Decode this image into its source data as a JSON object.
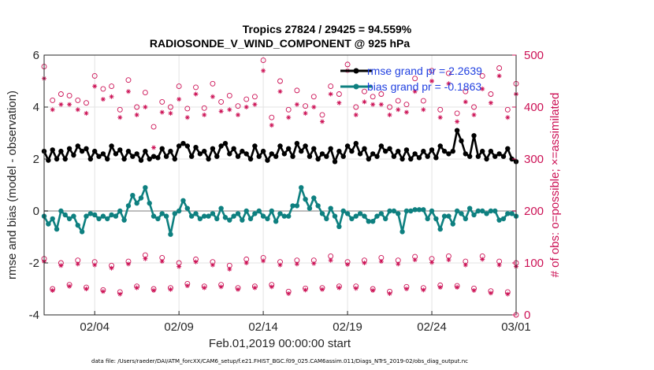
{
  "chart_data": {
    "type": "line",
    "title": "Tropics 27824 / 29425 = 94.559%",
    "subtitle": "RADIOSONDE_V_WIND_COMPONENT @ 925 hPa",
    "xlabel": "Feb.01,2019 00:00:00 start",
    "ylabel": "rmse and bias (model - observation)",
    "y2label": "# of obs: o=possible; ×=assimilated",
    "ylim": [
      -4,
      6
    ],
    "y2lim": [
      0,
      500
    ],
    "x_days_range": [
      0,
      28
    ],
    "x_ticks": [
      {
        "day": 3,
        "label": "02/04"
      },
      {
        "day": 8,
        "label": "02/09"
      },
      {
        "day": 13,
        "label": "02/14"
      },
      {
        "day": 18,
        "label": "02/19"
      },
      {
        "day": 23,
        "label": "02/24"
      },
      {
        "day": 28,
        "label": "03/01"
      }
    ],
    "y_ticks": [
      -4,
      -2,
      0,
      2,
      4,
      6
    ],
    "y_tick_labels": [
      "-4",
      "-2",
      "0",
      "2",
      "4",
      "6"
    ],
    "y2_ticks": [
      0,
      100,
      200,
      300,
      400,
      500
    ],
    "y2_tick_labels": [
      "0",
      "100",
      "200",
      "300",
      "400",
      "500"
    ],
    "legend": [
      {
        "label": "rmse grand pr = 2.2639",
        "color": "#000000"
      },
      {
        "label": "bias grand pr = -0.1863",
        "color": "#0e8080"
      }
    ],
    "legend_position": "top-right",
    "colors": {
      "rmse": "#000000",
      "bias": "#0e8080",
      "obs": "#cc1155",
      "zero_line": "#bdbdbd"
    },
    "series": [
      {
        "name": "rmse",
        "axis": "left",
        "x": [
          0,
          0.25,
          0.5,
          0.75,
          1,
          1.25,
          1.5,
          1.75,
          2,
          2.25,
          2.5,
          2.75,
          3,
          3.25,
          3.5,
          3.75,
          4,
          4.25,
          4.5,
          4.75,
          5,
          5.25,
          5.5,
          5.75,
          6,
          6.25,
          6.5,
          6.75,
          7,
          7.25,
          7.5,
          7.75,
          8,
          8.25,
          8.5,
          8.75,
          9,
          9.25,
          9.5,
          9.75,
          10,
          10.25,
          10.5,
          10.75,
          11,
          11.25,
          11.5,
          11.75,
          12,
          12.25,
          12.5,
          12.75,
          13,
          13.25,
          13.5,
          13.75,
          14,
          14.25,
          14.5,
          14.75,
          15,
          15.25,
          15.5,
          15.75,
          16,
          16.25,
          16.5,
          16.75,
          17,
          17.25,
          17.5,
          17.75,
          18,
          18.25,
          18.5,
          18.75,
          19,
          19.25,
          19.5,
          19.75,
          20,
          20.25,
          20.5,
          20.75,
          21,
          21.25,
          21.5,
          21.75,
          22,
          22.25,
          22.5,
          22.75,
          23,
          23.25,
          23.5,
          23.75,
          24,
          24.25,
          24.5,
          24.75,
          25,
          25.25,
          25.5,
          25.75,
          26,
          26.25,
          26.5,
          26.75,
          27,
          27.25,
          27.5,
          27.75,
          28
        ],
        "values": [
          2.3,
          1.95,
          2.35,
          2.0,
          2.3,
          2.0,
          2.4,
          2.15,
          2.5,
          2.3,
          2.4,
          2.0,
          2.3,
          2.1,
          2.2,
          2.0,
          2.5,
          2.2,
          2.35,
          2.0,
          2.3,
          2.1,
          2.2,
          1.95,
          2.3,
          2.0,
          2.1,
          2.05,
          2.4,
          2.1,
          2.3,
          2.0,
          2.5,
          2.6,
          2.5,
          2.1,
          2.45,
          2.2,
          2.3,
          2.0,
          2.4,
          2.1,
          2.5,
          2.6,
          2.2,
          2.4,
          2.1,
          2.3,
          2.2,
          2.0,
          2.5,
          2.1,
          2.3,
          1.95,
          2.2,
          2.1,
          2.5,
          2.2,
          2.4,
          2.1,
          2.6,
          2.3,
          2.5,
          2.1,
          2.4,
          2.0,
          2.2,
          2.1,
          2.4,
          1.9,
          2.3,
          2.1,
          2.5,
          2.3,
          2.6,
          2.2,
          2.4,
          2.0,
          2.2,
          2.1,
          2.5,
          2.3,
          2.4,
          2.1,
          2.3,
          2.0,
          2.35,
          2.0,
          2.2,
          2.05,
          2.3,
          2.1,
          2.35,
          2.05,
          2.5,
          2.3,
          2.2,
          2.3,
          3.1,
          2.7,
          2.2,
          2.1,
          2.9,
          2.1,
          2.3,
          2.0,
          2.3,
          2.1,
          2.2,
          2.1,
          2.4,
          2.0,
          1.9
        ]
      },
      {
        "name": "bias",
        "axis": "left",
        "x": [
          0,
          0.25,
          0.5,
          0.75,
          1,
          1.25,
          1.5,
          1.75,
          2,
          2.25,
          2.5,
          2.75,
          3,
          3.25,
          3.5,
          3.75,
          4,
          4.25,
          4.5,
          4.75,
          5,
          5.25,
          5.5,
          5.75,
          6,
          6.25,
          6.5,
          6.75,
          7,
          7.25,
          7.5,
          7.75,
          8,
          8.25,
          8.5,
          8.75,
          9,
          9.25,
          9.5,
          9.75,
          10,
          10.25,
          10.5,
          10.75,
          11,
          11.25,
          11.5,
          11.75,
          12,
          12.25,
          12.5,
          12.75,
          13,
          13.25,
          13.5,
          13.75,
          14,
          14.25,
          14.5,
          14.75,
          15,
          15.25,
          15.5,
          15.75,
          16,
          16.25,
          16.5,
          16.75,
          17,
          17.25,
          17.5,
          17.75,
          18,
          18.25,
          18.5,
          18.75,
          19,
          19.25,
          19.5,
          19.75,
          20,
          20.25,
          20.5,
          20.75,
          21,
          21.25,
          21.5,
          21.75,
          22,
          22.25,
          22.5,
          22.75,
          23,
          23.25,
          23.5,
          23.75,
          24,
          24.25,
          24.5,
          24.75,
          25,
          25.25,
          25.5,
          25.75,
          26,
          26.25,
          26.5,
          26.75,
          27,
          27.25,
          27.5,
          27.75,
          28
        ],
        "values": [
          -0.2,
          -0.5,
          -0.3,
          -0.7,
          0.0,
          -0.15,
          -0.3,
          -0.2,
          -0.55,
          -0.8,
          -0.2,
          -0.1,
          -0.15,
          -0.3,
          -0.2,
          -0.3,
          -0.15,
          -0.2,
          0.0,
          -0.35,
          0.2,
          0.6,
          0.3,
          0.5,
          0.9,
          0.3,
          -0.2,
          -0.3,
          -0.1,
          -0.2,
          -0.9,
          -0.1,
          0.0,
          0.4,
          0.1,
          -0.2,
          -0.1,
          -0.3,
          -0.2,
          -0.2,
          -0.1,
          -0.3,
          0.1,
          -0.25,
          -0.35,
          -0.2,
          -0.1,
          -0.35,
          0.0,
          -0.3,
          -0.1,
          0.0,
          -0.2,
          -0.3,
          0.0,
          -0.4,
          -0.1,
          -0.2,
          -0.2,
          0.2,
          0.2,
          0.9,
          0.45,
          0.1,
          0.5,
          0.2,
          -0.1,
          -0.3,
          0.1,
          -0.2,
          -0.6,
          0.0,
          -0.1,
          -0.3,
          -0.2,
          -0.1,
          -0.2,
          -0.4,
          -0.4,
          -0.2,
          -0.1,
          -0.3,
          0.0,
          0.0,
          -0.1,
          -0.8,
          0.0,
          0.0,
          0.05,
          0.05,
          0.05,
          -0.3,
          0.0,
          -0.3,
          -0.7,
          -0.2,
          -0.2,
          -0.5,
          0.0,
          -0.1,
          -0.3,
          0.1,
          -0.15,
          0.0,
          0.0,
          -0.1,
          0.0,
          0.0,
          -0.35,
          -0.3,
          -0.1,
          -0.1,
          -0.2
        ]
      },
      {
        "name": "obs possible (group 1)",
        "axis": "right",
        "marker": "o",
        "x": [
          0,
          1,
          2,
          3,
          4,
          5,
          6,
          7,
          8,
          9,
          10,
          11,
          12,
          13,
          14,
          15,
          16,
          17,
          18,
          19,
          20,
          21,
          22,
          23,
          24,
          25,
          26,
          27,
          28
        ],
        "values": [
          478,
          425,
          413,
          460,
          440,
          452,
          428,
          410,
          440,
          438,
          445,
          422,
          415,
          490,
          450,
          432,
          420,
          440,
          482,
          430,
          425,
          412,
          455,
          470,
          465,
          430,
          460,
          475,
          445
        ]
      },
      {
        "name": "obs assimilated (group 1)",
        "axis": "right",
        "marker": "*",
        "x": [
          0,
          1,
          2,
          3,
          4,
          5,
          6,
          7,
          8,
          9,
          10,
          11,
          12,
          13,
          14,
          15,
          16,
          17,
          18,
          19,
          20,
          21,
          22,
          23,
          24,
          25,
          26,
          27,
          28
        ],
        "values": [
          455,
          405,
          395,
          440,
          420,
          430,
          400,
          390,
          415,
          425,
          420,
          395,
          400,
          470,
          430,
          405,
          400,
          425,
          470,
          410,
          405,
          395,
          430,
          450,
          445,
          410,
          435,
          460,
          425
        ]
      },
      {
        "name": "obs possible (group 2)",
        "axis": "right",
        "marker": "o",
        "x": [
          0.5,
          1.5,
          2.5,
          3.5,
          4.5,
          5.5,
          6.5,
          7.5,
          8.5,
          9.5,
          10.5,
          11.5,
          12.5,
          13.5,
          14.5,
          15.5,
          16.5,
          17.5,
          18.5,
          19.5,
          20.5,
          21.5,
          22.5,
          23.5,
          24.5,
          25.5,
          26.5,
          27.5
        ],
        "values": [
          413,
          422,
          408,
          435,
          395,
          400,
          362,
          400,
          397,
          398,
          410,
          402,
          420,
          380,
          395,
          402,
          385,
          425,
          400,
          420,
          400,
          405,
          412,
          395,
          388,
          400,
          425,
          395
        ]
      },
      {
        "name": "obs assimilated (group 2)",
        "axis": "right",
        "marker": "*",
        "x": [
          0.5,
          1.5,
          2.5,
          3.5,
          4.5,
          5.5,
          6.5,
          7.5,
          8.5,
          9.5,
          10.5,
          11.5,
          12.5,
          13.5,
          14.5,
          15.5,
          16.5,
          17.5,
          18.5,
          19.5,
          20.5,
          21.5,
          22.5,
          23.5,
          24.5,
          25.5,
          26.5,
          27.5
        ],
        "values": [
          395,
          405,
          388,
          415,
          380,
          385,
          322,
          388,
          380,
          385,
          392,
          385,
          405,
          365,
          380,
          388,
          372,
          408,
          385,
          405,
          385,
          390,
          395,
          380,
          372,
          385,
          408,
          380
        ]
      },
      {
        "name": "obs possible (group 3)",
        "axis": "right",
        "marker": "o",
        "x": [
          0,
          1,
          2,
          3,
          4,
          5,
          6,
          7,
          8,
          9,
          10,
          11,
          12,
          13,
          14,
          15,
          16,
          17,
          18,
          19,
          20,
          21,
          22,
          23,
          24,
          25,
          26,
          27,
          28
        ],
        "values": [
          108,
          100,
          105,
          102,
          95,
          103,
          115,
          110,
          100,
          107,
          102,
          95,
          107,
          110,
          102,
          105,
          105,
          113,
          102,
          105,
          110,
          105,
          112,
          108,
          113,
          103,
          113,
          103,
          100
        ]
      },
      {
        "name": "obs assimilated (group 3)",
        "axis": "right",
        "marker": "*",
        "x": [
          0,
          1,
          2,
          3,
          4,
          5,
          6,
          7,
          8,
          9,
          10,
          11,
          12,
          13,
          14,
          15,
          16,
          17,
          18,
          19,
          20,
          21,
          22,
          23,
          24,
          25,
          26,
          27,
          28
        ],
        "values": [
          103,
          95,
          98,
          96,
          90,
          98,
          108,
          103,
          93,
          102,
          96,
          88,
          100,
          104,
          96,
          98,
          99,
          105,
          97,
          100,
          103,
          98,
          106,
          101,
          106,
          96,
          107,
          96,
          93
        ]
      },
      {
        "name": "obs possible (group 4)",
        "axis": "right",
        "marker": "o",
        "x": [
          0.5,
          1.5,
          2.5,
          3.5,
          4.5,
          5.5,
          6.5,
          7.5,
          8.5,
          9.5,
          10.5,
          11.5,
          12.5,
          13.5,
          14.5,
          15.5,
          16.5,
          17.5,
          18.5,
          19.5,
          20.5,
          21.5,
          22.5,
          23.5,
          24.5,
          25.5,
          26.5,
          27.5
        ],
        "values": [
          50,
          58,
          53,
          48,
          44,
          55,
          50,
          52,
          60,
          55,
          58,
          52,
          55,
          58,
          45,
          51,
          52,
          55,
          55,
          50,
          45,
          54,
          52,
          57,
          56,
          51,
          46,
          44
        ]
      },
      {
        "name": "obs assimilated (group 4)",
        "axis": "right",
        "marker": "*",
        "x": [
          0.5,
          1.5,
          2.5,
          3.5,
          4.5,
          5.5,
          6.5,
          7.5,
          8.5,
          9.5,
          10.5,
          11.5,
          12.5,
          13.5,
          14.5,
          15.5,
          16.5,
          17.5,
          18.5,
          19.5,
          20.5,
          21.5,
          22.5,
          23.5,
          24.5,
          25.5,
          26.5,
          27.5
        ],
        "values": [
          47,
          55,
          50,
          45,
          40,
          52,
          47,
          49,
          56,
          52,
          54,
          49,
          52,
          54,
          41,
          48,
          49,
          52,
          51,
          47,
          41,
          50,
          48,
          53,
          53,
          47,
          42,
          40
        ]
      },
      {
        "name": "obs possible (end marker)",
        "axis": "right",
        "marker": "o",
        "x": [
          28
        ],
        "values": [
          0
        ]
      }
    ],
    "footer": "data file: /Users/raeder/DAI/ATM_forcXX/CAM6_setup/f.e21.FHIST_BGC.f09_025.CAM6assim.011/Diags_NTrS_2019-02/obs_diag_output.nc"
  }
}
